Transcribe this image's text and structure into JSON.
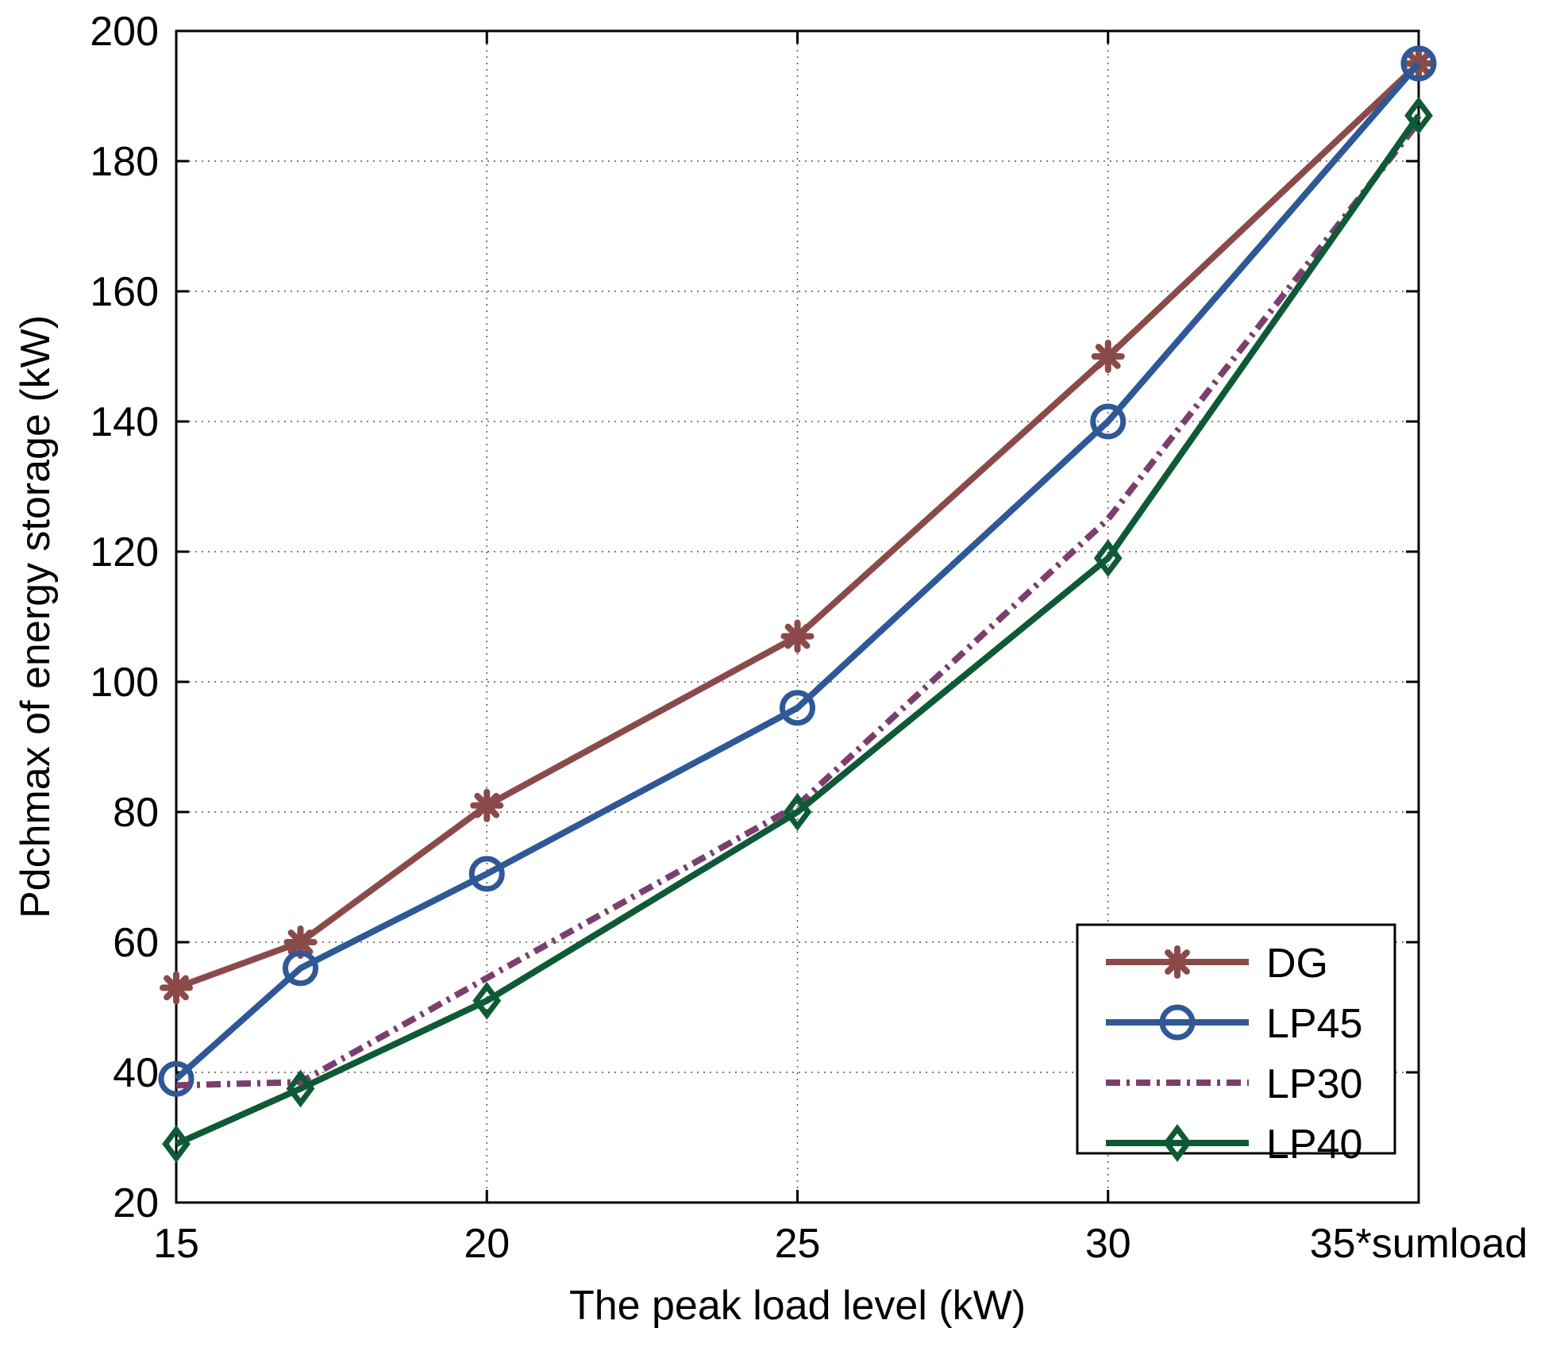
{
  "chart_data": {
    "type": "line",
    "title": "",
    "xlabel": "The peak load level (kW)",
    "ylabel": "Pdchmax of energy storage (kW)",
    "xlim": [
      15,
      35
    ],
    "ylim": [
      20,
      200
    ],
    "xticks": [
      15,
      20,
      25,
      30,
      35
    ],
    "xtick_labels": [
      "15",
      "20",
      "25",
      "30",
      "35*sumload"
    ],
    "yticks": [
      20,
      40,
      60,
      80,
      100,
      120,
      140,
      160,
      180,
      200
    ],
    "ytick_labels": [
      "20",
      "40",
      "60",
      "80",
      "100",
      "120",
      "140",
      "160",
      "180",
      "200"
    ],
    "grid": true,
    "legend_position": "bottom-right",
    "x": [
      15,
      17,
      20,
      25,
      30,
      35
    ],
    "series": [
      {
        "name": "DG",
        "color": "#8B4A4A",
        "marker": "asterisk",
        "dash": "solid",
        "values": [
          53,
          60,
          81,
          107,
          150,
          195
        ]
      },
      {
        "name": "LP45",
        "color": "#2E5896",
        "marker": "circle",
        "dash": "solid",
        "values": [
          39,
          56,
          70.5,
          96,
          140,
          195
        ]
      },
      {
        "name": "LP30",
        "color": "#7B3F6E",
        "marker": "none",
        "dash": "dashdot",
        "values": [
          38,
          38.5,
          54.5,
          81,
          125,
          186
        ]
      },
      {
        "name": "LP40",
        "color": "#0E5A36",
        "marker": "diamond",
        "dash": "solid",
        "values": [
          29,
          37.5,
          51,
          80,
          119,
          187
        ]
      }
    ]
  }
}
